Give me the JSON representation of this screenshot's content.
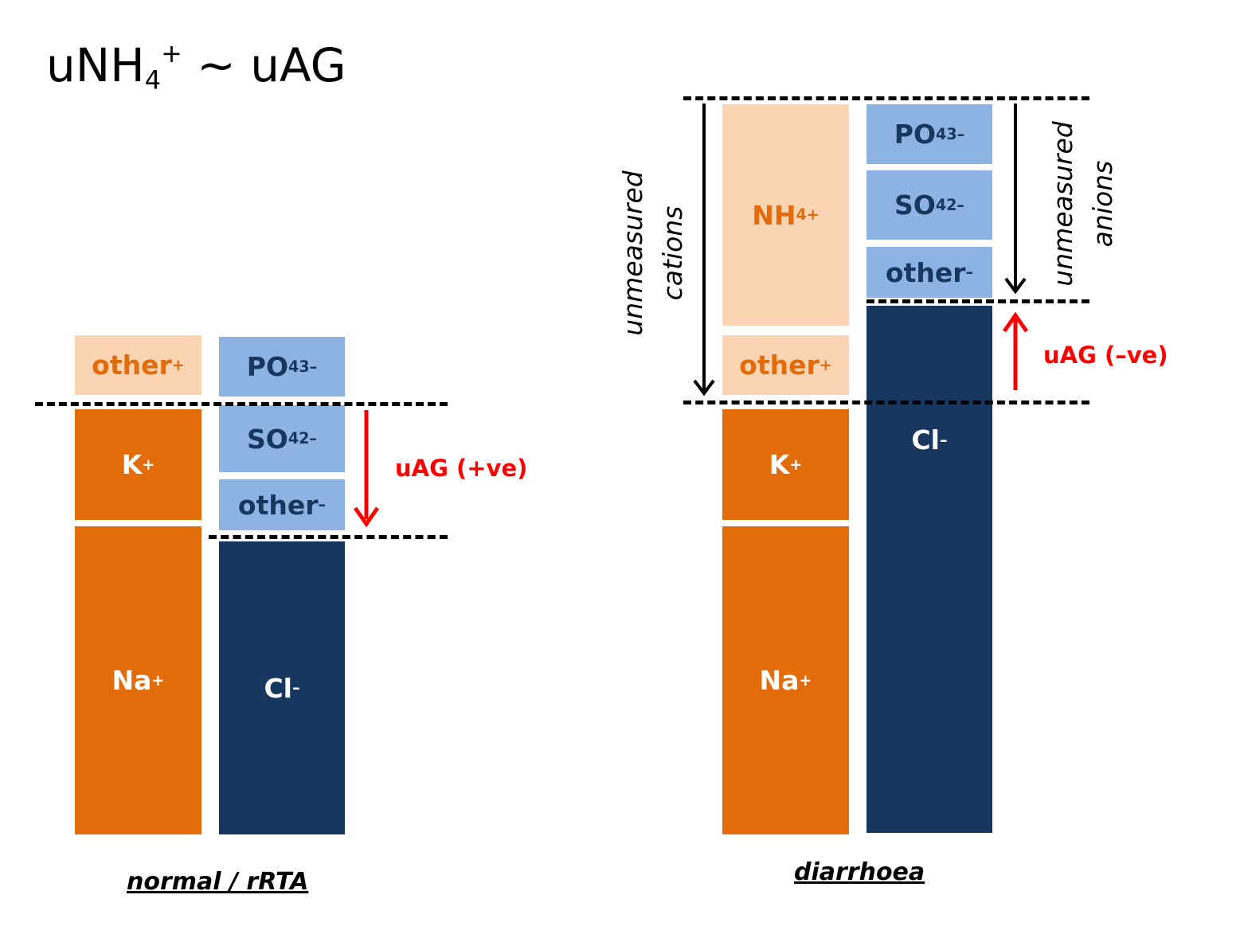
{
  "title": {
    "main": "uNH",
    "sub": "4",
    "sup": "+",
    "rest": " ~ uAG"
  },
  "colors": {
    "cation_measured": "#E36C0A",
    "cation_unmeasured": "#FBD4B4",
    "anion_unmeasured": "#8DB3E2",
    "anion_measured": "#17375E",
    "uag_arrow": "#FF0000"
  },
  "left_panel": {
    "caption": "normal / rRTA",
    "cations": {
      "other": {
        "base": "other",
        "sup": "+"
      },
      "k": {
        "base": "K",
        "sup": "+"
      },
      "na": {
        "base": "Na",
        "sup": "+"
      }
    },
    "anions": {
      "po4": {
        "base": "PO",
        "sub": "4",
        "sup": "3–"
      },
      "so4": {
        "base": "SO",
        "sub": "4",
        "sup": "2–"
      },
      "other": {
        "base": "other",
        "sup": "–"
      },
      "cl": {
        "base": "Cl",
        "sup": "–"
      }
    },
    "uag_label": "uAG (+ve)"
  },
  "right_panel": {
    "caption": "diarrhoea",
    "cations": {
      "nh4": {
        "base": "NH",
        "sub": "4",
        "sup": "+"
      },
      "other": {
        "base": "other",
        "sup": "+"
      },
      "k": {
        "base": "K",
        "sup": "+"
      },
      "na": {
        "base": "Na",
        "sup": "+"
      }
    },
    "anions": {
      "po4": {
        "base": "PO",
        "sub": "4",
        "sup": "3–"
      },
      "so4": {
        "base": "SO",
        "sub": "4",
        "sup": "2–"
      },
      "other": {
        "base": "other",
        "sup": "–"
      },
      "cl": {
        "base": "Cl",
        "sup": "–"
      }
    },
    "unmeasured_cations_label": {
      "line1": "unmeasured",
      "line2": "cations"
    },
    "unmeasured_anions_label": {
      "line1": "unmeasured",
      "line2": "anions"
    },
    "uag_label": "uAG (–ve)"
  }
}
